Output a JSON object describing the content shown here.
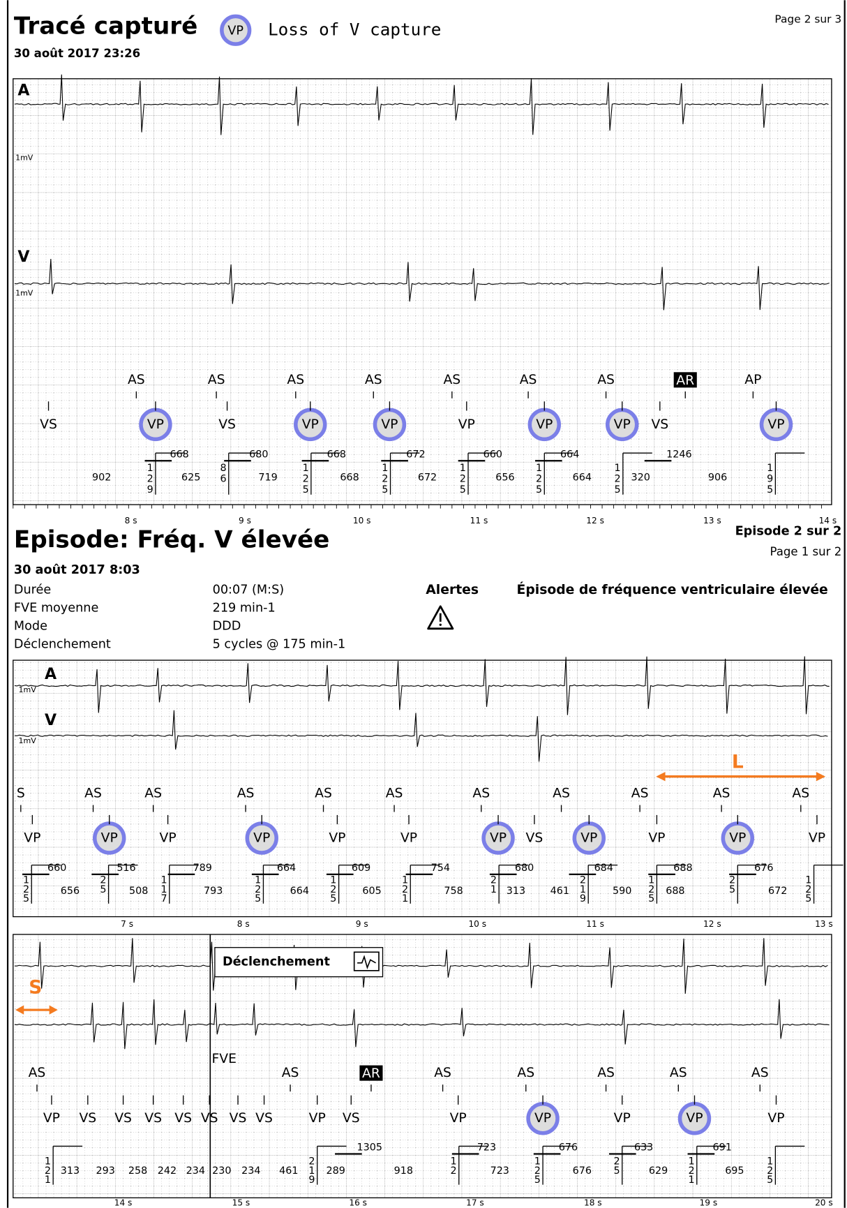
{
  "header": {
    "title": "Tracé capturé",
    "legend_marker": "VP",
    "legend_text": "Loss of V capture",
    "page": "Page 2 sur 3",
    "date": "30 août 2017 23:26"
  },
  "strip1": {
    "channels": [
      "A",
      "V"
    ],
    "scale_labels": [
      "1mV",
      "1mV"
    ],
    "atrial_markers": [
      "AS",
      "AS",
      "AS",
      "AS",
      "AS",
      "AS",
      "AS",
      "AR",
      "AP"
    ],
    "ventricular_markers": [
      "VS",
      "VP",
      "VS",
      "VP",
      "VP",
      "VP",
      "VP",
      "VP",
      "VS",
      "VP"
    ],
    "intervals_top": [
      668,
      680,
      668,
      672,
      660,
      664,
      1246
    ],
    "intervals_bottom": [
      902,
      625,
      719,
      668,
      672,
      656,
      664,
      320,
      906
    ],
    "vertical_numbers": [
      [
        "1",
        "2",
        "9"
      ],
      [
        "8",
        "6"
      ],
      [
        "1",
        "2",
        "5"
      ],
      [
        "1",
        "2",
        "5"
      ],
      [
        "1",
        "2",
        "5"
      ],
      [
        "1",
        "2",
        "5"
      ],
      [
        "1",
        "2",
        "5"
      ],
      [
        "1",
        "9",
        "5"
      ]
    ],
    "time_labels": [
      "8 s",
      "9 s",
      "10 s",
      "11 s",
      "12 s",
      "13 s",
      "14 s"
    ]
  },
  "episode": {
    "title": "Episode: Fréq. V élevée",
    "episode_count": "Episode 2 sur 2",
    "page": "Page 1 sur 2",
    "date": "30 août 2017 8:03",
    "details": [
      [
        "Durée",
        "00:07 (M:S)"
      ],
      [
        "FVE moyenne",
        "219 min-1"
      ],
      [
        "Mode",
        "DDD"
      ],
      [
        "Déclenchement",
        "5 cycles @ 175 min-1"
      ]
    ],
    "alerts_label": "Alertes",
    "alert_text": "Épisode de fréquence ventriculaire élevée"
  },
  "strip2": {
    "channels": [
      "A",
      "V"
    ],
    "scale_labels": [
      "1mV",
      "1mV"
    ],
    "interval_label": "L",
    "atrial_markers": [
      "S",
      "AS",
      "AS",
      "AS",
      "AS",
      "AS",
      "AS",
      "AS",
      "AS",
      "AS",
      "AS"
    ],
    "ventricular_markers": [
      "VP",
      "VP",
      "VP",
      "VP",
      "VP",
      "VP",
      "VP",
      "VS",
      "VP",
      "VP",
      "VP",
      "VP"
    ],
    "intervals_top": [
      660,
      516,
      789,
      664,
      609,
      754,
      680,
      684,
      688,
      676
    ],
    "intervals_bottom": [
      656,
      508,
      793,
      664,
      605,
      758,
      313,
      461,
      590,
      688,
      672
    ],
    "vertical_numbers": [
      [
        "1",
        "2",
        "5"
      ],
      [
        "2",
        "5"
      ],
      [
        "1",
        "1",
        "7"
      ],
      [
        "1",
        "2",
        "5"
      ],
      [
        "1",
        "2",
        "5"
      ],
      [
        "1",
        "2",
        "1"
      ],
      [
        "2",
        "1"
      ],
      [
        "2",
        "1",
        "9"
      ],
      [
        "1",
        "2",
        "5"
      ],
      [
        "2",
        "5"
      ],
      [
        "1",
        "2",
        "5"
      ]
    ],
    "time_labels": [
      "7 s",
      "8 s",
      "9 s",
      "10 s",
      "11 s",
      "12 s",
      "13 s"
    ]
  },
  "strip3": {
    "trigger": "Déclenchement",
    "fve": "FVE",
    "interval_label": "S",
    "atrial_markers": [
      "AS",
      "AS",
      "AR",
      "AS",
      "AS",
      "AS",
      "AS",
      "AS"
    ],
    "ventricular_markers": [
      "VP",
      "VS",
      "VS",
      "VS",
      "VS",
      "VS",
      "VS",
      "VS",
      "VP",
      "VS",
      "VP",
      "VP",
      "VP",
      "VP",
      "VP"
    ],
    "intervals_top": [
      1305,
      723,
      676,
      633,
      691
    ],
    "intervals_bottom": [
      313,
      293,
      258,
      242,
      234,
      230,
      234,
      461,
      289,
      918,
      723,
      676,
      629,
      695
    ],
    "vertical_numbers": [
      [
        "1",
        "2",
        "1"
      ],
      [
        "2",
        "1",
        "9"
      ],
      [
        "1",
        "2"
      ],
      [
        "1",
        "2",
        "5"
      ],
      [
        "2",
        "5"
      ],
      [
        "1",
        "2",
        "1"
      ],
      [
        "1",
        "2",
        "5"
      ]
    ],
    "time_labels": [
      "14 s",
      "15 s",
      "16 s",
      "17 s",
      "18 s",
      "19 s",
      "20 s"
    ]
  }
}
